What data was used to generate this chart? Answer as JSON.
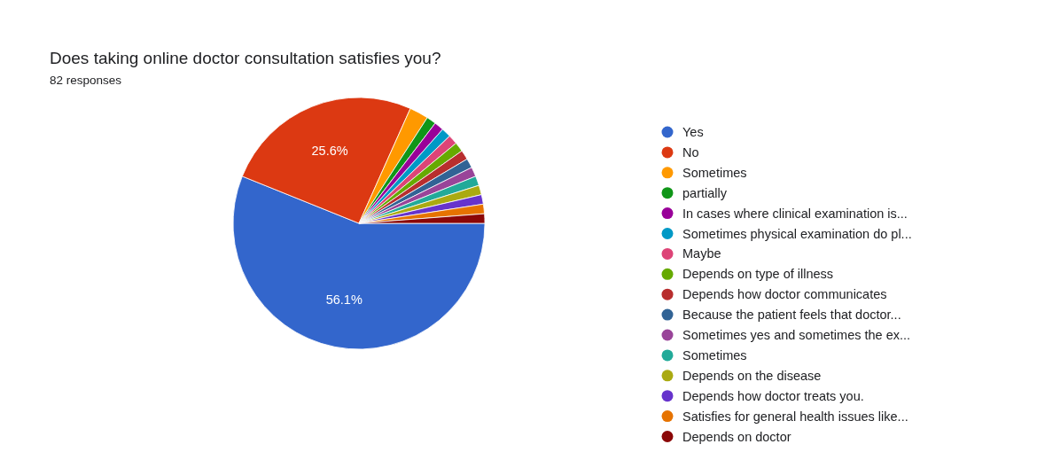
{
  "chart_data": {
    "type": "pie",
    "title": "Does taking online doctor consultation satisfies you?",
    "subtitle": "82 responses",
    "categories": [
      "Yes",
      "No",
      "Sometimes",
      "partially",
      "In cases where clinical examination is...",
      "Sometimes physical examination do pl...",
      "Maybe",
      "Depends on type of illness",
      "Depends how doctor communicates",
      "Because the patient feels that doctor...",
      "Sometimes yes and sometimes the ex...",
      "Sometimes",
      "Depends on the disease",
      "Depends how doctor treats you.",
      "Satisfies for general health issues like...",
      "Depends on doctor"
    ],
    "values": [
      56.1,
      25.6,
      2.44,
      1.22,
      1.22,
      1.22,
      1.22,
      1.22,
      1.22,
      1.22,
      1.22,
      1.22,
      1.22,
      1.22,
      1.22,
      1.22
    ],
    "colors": [
      "#3366cc",
      "#dc3912",
      "#ff9900",
      "#109618",
      "#990099",
      "#0099c6",
      "#dd4477",
      "#66aa00",
      "#b82e2e",
      "#316395",
      "#994499",
      "#22aa99",
      "#aaaa11",
      "#6633cc",
      "#e67300",
      "#8b0707"
    ],
    "value_labels": [
      "56.1%",
      "25.6%",
      null,
      null,
      null,
      null,
      null,
      null,
      null,
      null,
      null,
      null,
      null,
      null,
      null,
      null
    ],
    "legend": "right"
  }
}
